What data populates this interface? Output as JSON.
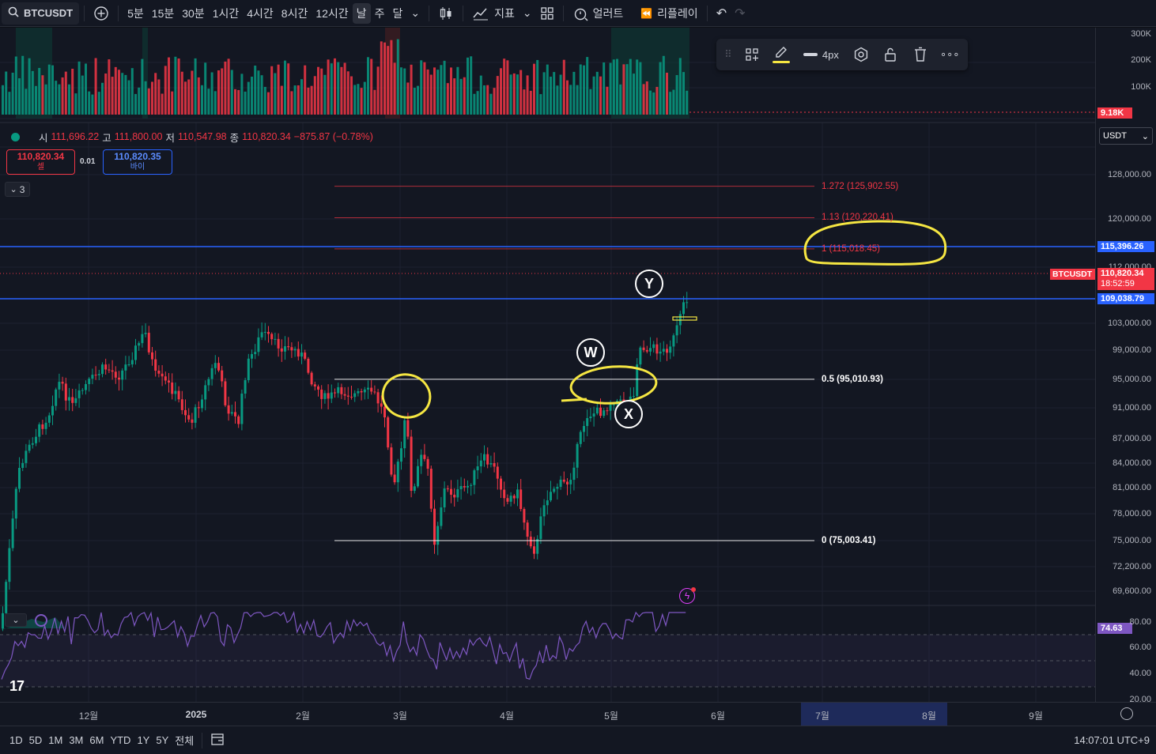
{
  "toolbar": {
    "symbol": "BTCUSDT",
    "intervals": [
      "5분",
      "15분",
      "30분",
      "1시간",
      "4시간",
      "8시간",
      "12시간",
      "날",
      "주",
      "달"
    ],
    "active_interval": "날",
    "indicators_label": "지표",
    "alert_label": "얼러트",
    "replay_label": "리플레이"
  },
  "drawing_toolbar": {
    "width_label": "4px",
    "pen_color": "#f5e642"
  },
  "legend": {
    "open_key": "시",
    "open": "111,696.22",
    "high_key": "고",
    "high": "111,800.00",
    "low_key": "저",
    "low": "110,547.98",
    "close_key": "종",
    "close": "110,820.34",
    "change": "−875.87 (−0.78%)",
    "sell_price": "110,820.34",
    "sell_label": "셀",
    "spread": "0.01",
    "buy_price": "110,820.35",
    "buy_label": "바이",
    "collapse_count": "3",
    "currency": "USDT"
  },
  "volume_axis": [
    "300K",
    "200K",
    "100K"
  ],
  "volume_tag": "9.18K",
  "price_axis": [
    {
      "label": "128,000.00",
      "price": 128000
    },
    {
      "label": "120,000.00",
      "price": 120000
    },
    {
      "label": "112,000.00",
      "price": 112000
    },
    {
      "label": "103,000.00",
      "price": 103000
    },
    {
      "label": "99,000.00",
      "price": 99000
    },
    {
      "label": "95,000.00",
      "price": 95000
    },
    {
      "label": "91,000.00",
      "price": 91000
    },
    {
      "label": "87,000.00",
      "price": 87000
    },
    {
      "label": "84,000.00",
      "price": 84000
    },
    {
      "label": "81,000.00",
      "price": 81000
    },
    {
      "label": "78,000.00",
      "price": 78000
    },
    {
      "label": "75,000.00",
      "price": 75000
    },
    {
      "label": "72,200.00",
      "price": 72200
    },
    {
      "label": "69,600.00",
      "price": 69600
    }
  ],
  "price_tags": {
    "upper_line": "115,396.26",
    "current_symbol": "BTCUSDT",
    "current_price": "110,820.34",
    "countdown": "18:52:59",
    "lower_line": "109,038.79"
  },
  "fib_levels": [
    {
      "label": "1.272 (125,902.55)",
      "price": 125902.55,
      "color": "#f23645"
    },
    {
      "label": "1.13 (120,220.41)",
      "price": 120220.41,
      "color": "#f23645"
    },
    {
      "label": "1 (115,018.45)",
      "price": 115018.45,
      "color": "#f23645"
    },
    {
      "label": "0.5 (95,010.93)",
      "price": 95010.93,
      "color": "#ffffff"
    },
    {
      "label": "0 (75,003.41)",
      "price": 75003.41,
      "color": "#ffffff"
    }
  ],
  "wave_labels": [
    "W",
    "X",
    "Y"
  ],
  "rsi": {
    "value": "74.63",
    "axis": [
      "80.00",
      "60.00",
      "40.00",
      "20.00"
    ]
  },
  "time_axis": [
    "12월",
    "2025",
    "2월",
    "3월",
    "4월",
    "5월",
    "6월",
    "7월",
    "8월",
    "9월"
  ],
  "bottom_bar": {
    "ranges": [
      "1D",
      "5D",
      "1M",
      "3M",
      "6M",
      "YTD",
      "1Y",
      "5Y",
      "전체"
    ],
    "clock": "14:07:01 UTC+9"
  },
  "colors": {
    "up": "#089981",
    "down": "#f23645",
    "hline": "#2962ff",
    "annotation": "#f5e642",
    "rsi": "#7e57c2"
  },
  "chart_data": {
    "type": "candlestick",
    "symbol": "BTCUSDT",
    "interval": "1D",
    "x": [
      "2024-11-15",
      "2024-12-01",
      "2024-12-17",
      "2025-01-01",
      "2025-01-20",
      "2025-02-01",
      "2025-02-15",
      "2025-03-01",
      "2025-03-15",
      "2025-04-01",
      "2025-04-09",
      "2025-04-22",
      "2025-05-01",
      "2025-05-12",
      "2025-05-22",
      "2025-05-26"
    ],
    "close": [
      88000,
      96500,
      104000,
      94000,
      106000,
      100500,
      96500,
      84500,
      83500,
      85000,
      76500,
      92500,
      95000,
      104000,
      110000,
      110820
    ],
    "horizontal_lines": [
      115396.26,
      109038.79
    ],
    "ylim": [
      68000,
      132000
    ],
    "rsi_last": 74.63
  }
}
